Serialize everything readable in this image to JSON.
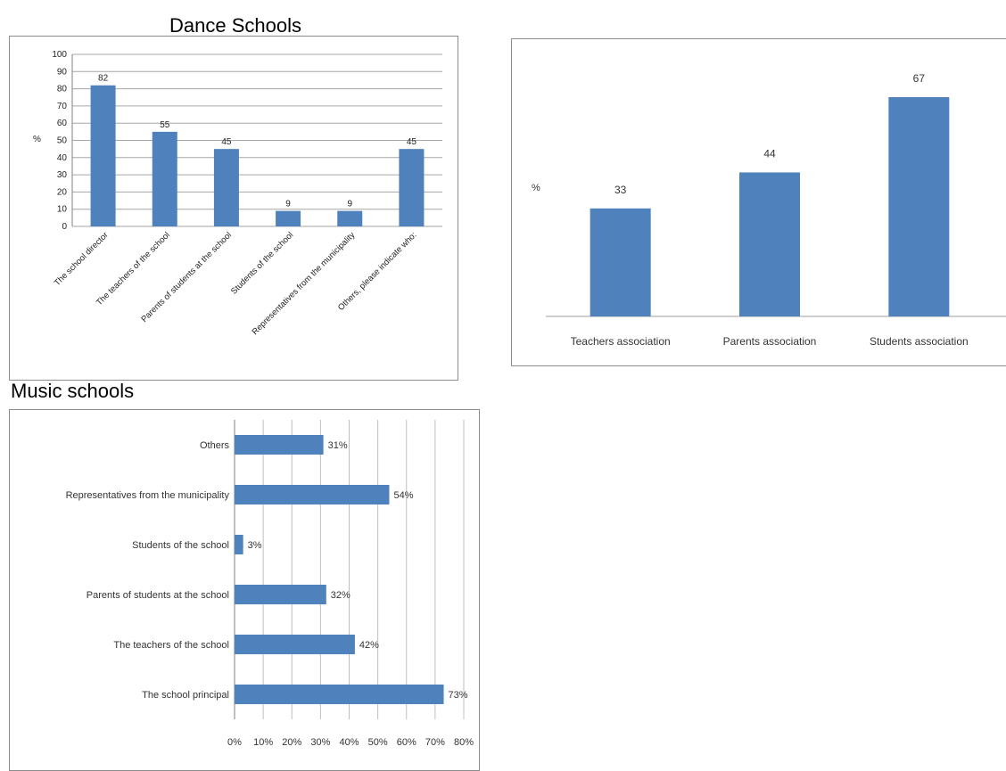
{
  "dance_title": "Dance Schools",
  "music_title": "Music schools",
  "chart_data": [
    {
      "type": "bar",
      "ylabel": "%",
      "ylim": [
        0,
        100
      ],
      "yticks": [
        0,
        10,
        20,
        30,
        40,
        50,
        60,
        70,
        80,
        90,
        100
      ],
      "grid": true,
      "categories": [
        "The school director",
        "The teachers of the school",
        "Parents of students at the school",
        "Students of the school",
        "Representatives from the municipality",
        "Others, please indicate who:"
      ],
      "values": [
        82,
        55,
        45,
        9,
        9,
        45
      ],
      "data_labels": [
        "82",
        "55",
        "45",
        "9",
        "9",
        "45"
      ],
      "color": "#4f81bd"
    },
    {
      "type": "bar",
      "ylabel": "%",
      "categories": [
        "Teachers association",
        "Parents association",
        "Students association"
      ],
      "values": [
        33,
        44,
        67
      ],
      "data_labels": [
        "33",
        "44",
        "67"
      ],
      "grid": false,
      "color": "#4f81bd"
    },
    {
      "type": "bar",
      "orientation": "horizontal",
      "xlim": [
        0,
        80
      ],
      "xticks": [
        "0%",
        "10%",
        "20%",
        "30%",
        "40%",
        "50%",
        "60%",
        "70%",
        "80%"
      ],
      "grid": true,
      "categories": [
        "Others",
        "Representatives from the municipality",
        "Students of the school",
        "Parents of students at the school",
        "The teachers of the school",
        "The school principal"
      ],
      "values": [
        31,
        54,
        3,
        32,
        42,
        73
      ],
      "data_labels": [
        "31%",
        "54%",
        "3%",
        "32%",
        "42%",
        "73%"
      ],
      "color": "#4f81bd"
    }
  ]
}
